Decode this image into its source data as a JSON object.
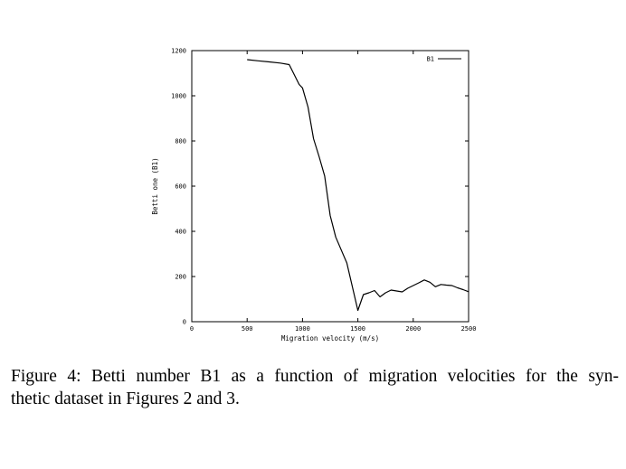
{
  "caption": {
    "line1": "Figure 4: Betti number B1 as a function of migration velocities for the syn-",
    "line2": "thetic dataset in Figures 2 and 3."
  },
  "chart_data": {
    "type": "line",
    "title": "",
    "xlabel": "Migration velocity (m/s)",
    "ylabel": "Betti one (B1)",
    "xlim": [
      0,
      2500
    ],
    "ylim": [
      0,
      1200
    ],
    "xticks": [
      0,
      500,
      1000,
      1500,
      2000,
      2500
    ],
    "yticks": [
      0,
      200,
      400,
      600,
      800,
      1000,
      1200
    ],
    "grid": false,
    "legend_position": "top-right",
    "colors": {
      "line": "#000000",
      "axis": "#000000"
    },
    "series": [
      {
        "name": "B1",
        "x": [
          500,
          600,
          700,
          800,
          880,
          970,
          1000,
          1050,
          1100,
          1150,
          1200,
          1250,
          1300,
          1400,
          1500,
          1550,
          1600,
          1650,
          1700,
          1750,
          1800,
          1900,
          1950,
          2000,
          2050,
          2100,
          2150,
          2200,
          2250,
          2300,
          2350,
          2400,
          2450,
          2500
        ],
        "y": [
          1160,
          1155,
          1150,
          1145,
          1138,
          1050,
          1035,
          950,
          810,
          730,
          645,
          470,
          375,
          260,
          50,
          120,
          128,
          138,
          110,
          128,
          140,
          132,
          148,
          160,
          172,
          185,
          175,
          155,
          165,
          162,
          160,
          150,
          142,
          133
        ]
      }
    ]
  }
}
